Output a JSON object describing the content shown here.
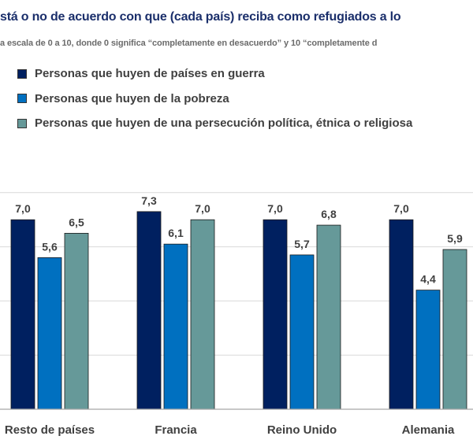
{
  "title": "stá o no de acuerdo con que (cada país) reciba como refugiados a lo",
  "subtitle": "a escala de 0 a 10, donde 0 significa “completamente en desacuerdo” y 10 “completamente d",
  "chart_data": {
    "type": "bar",
    "categories": [
      "Resto de países",
      "Francia",
      "Reino Unido",
      "Alemania"
    ],
    "series": [
      {
        "name": "Personas que huyen de países en guerra",
        "color": "#002060",
        "values": [
          7.0,
          7.3,
          7.0,
          7.0
        ],
        "labels": [
          "7,0",
          "7,3",
          "7,0",
          "7,0"
        ]
      },
      {
        "name": "Personas que huyen de la pobreza",
        "color": "#0070c0",
        "values": [
          5.6,
          6.1,
          5.7,
          4.4
        ],
        "labels": [
          "5,6",
          "6,1",
          "5,7",
          "4,4"
        ]
      },
      {
        "name": "Personas que huyen de una persecución política, étnica o religiosa",
        "color": "#669999",
        "values": [
          6.5,
          7.0,
          6.8,
          5.9
        ],
        "labels": [
          "6,5",
          "7,0",
          "6,8",
          "5,9"
        ]
      }
    ],
    "ylim": [
      0,
      8
    ],
    "gridlines": [
      2,
      4,
      6,
      8
    ],
    "grid": true,
    "legend": "top-left"
  }
}
